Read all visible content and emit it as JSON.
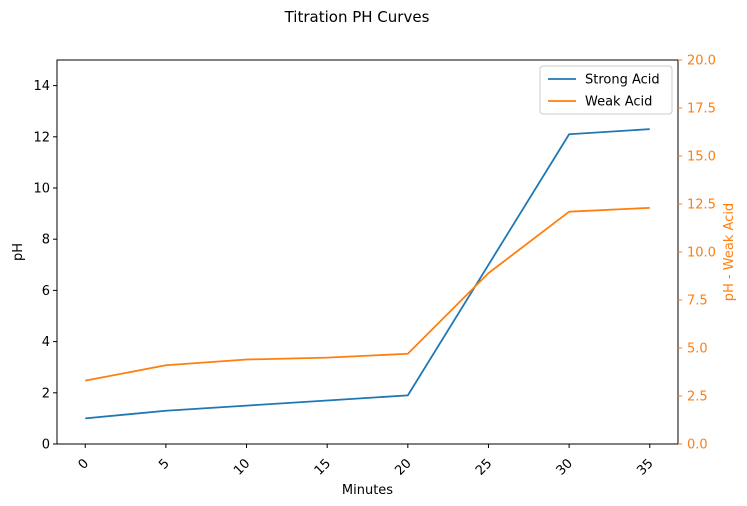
{
  "chart_data": {
    "type": "line",
    "title": "Titration PH Curves",
    "xlabel": "Minutes",
    "ylabel_left": "pH",
    "ylabel_right": "pH - Weak Acid",
    "x": [
      0,
      5,
      10,
      15,
      20,
      25,
      30,
      35
    ],
    "x_ticks": [
      "0",
      "5",
      "10",
      "15",
      "20",
      "25",
      "30",
      "35"
    ],
    "xlim": [
      -1.75,
      36.75
    ],
    "ylim_left": [
      0,
      15
    ],
    "ylim_right": [
      0,
      20
    ],
    "y_ticks_left": [
      "0",
      "2",
      "4",
      "6",
      "8",
      "10",
      "12",
      "14"
    ],
    "y_ticks_right": [
      "0.0",
      "2.5",
      "5.0",
      "7.5",
      "10.0",
      "12.5",
      "15.0",
      "17.5",
      "20.0"
    ],
    "grid": false,
    "legend_position": "top-right",
    "right_axis_color": "#ff7f0e",
    "series": [
      {
        "name": "Strong Acid",
        "axis": "left",
        "color": "#1f77b4",
        "values": [
          1.0,
          1.3,
          1.5,
          1.7,
          1.9,
          7.0,
          12.1,
          12.3
        ]
      },
      {
        "name": "Weak Acid",
        "axis": "right",
        "color": "#ff7f0e",
        "values": [
          3.3,
          4.1,
          4.4,
          4.5,
          4.7,
          8.9,
          12.1,
          12.3
        ]
      }
    ]
  }
}
